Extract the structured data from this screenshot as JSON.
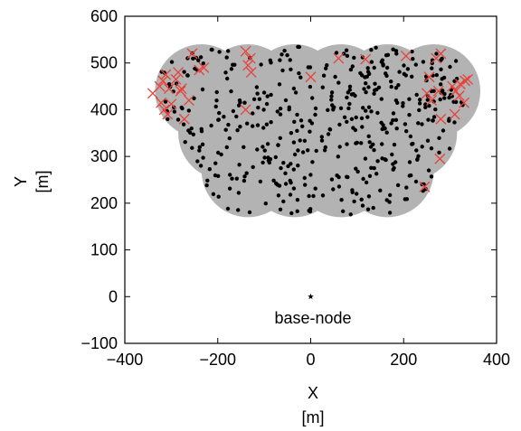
{
  "chart_data": {
    "type": "scatter",
    "xlim": [
      -400,
      400
    ],
    "ylim": [
      -100,
      600
    ],
    "xticks": [
      -400,
      -200,
      0,
      200,
      400
    ],
    "yticks": [
      -100,
      0,
      100,
      200,
      300,
      400,
      500,
      600
    ],
    "xtick_labels": [
      "−400",
      "−200",
      "0",
      "200",
      "400"
    ],
    "ytick_labels": [
      "−100",
      "0",
      "100",
      "200",
      "300",
      "400",
      "500",
      "600"
    ],
    "xlabel": "X",
    "xlabel_unit": "[m]",
    "ylabel": "Y",
    "ylabel_unit": "[m]",
    "grid": false,
    "coverage_circle_radius": 100,
    "coverage_circles": [
      [
        -235,
        440
      ],
      [
        -135,
        440
      ],
      [
        -35,
        440
      ],
      [
        65,
        440
      ],
      [
        165,
        440
      ],
      [
        265,
        440
      ],
      [
        -185,
        350
      ],
      [
        -85,
        350
      ],
      [
        15,
        350
      ],
      [
        115,
        350
      ],
      [
        215,
        350
      ],
      [
        -135,
        270
      ],
      [
        -35,
        270
      ],
      [
        65,
        270
      ],
      [
        165,
        270
      ]
    ],
    "base_node": {
      "x": 0,
      "y": 0,
      "label": "base-node"
    },
    "marker_colors": {
      "coverage": "#b3b3b3",
      "sensor": "#000000",
      "cross": "#e8413a"
    },
    "cross_markers": [
      [
        -340,
        435
      ],
      [
        -325,
        450
      ],
      [
        -318,
        462
      ],
      [
        -312,
        475
      ],
      [
        -322,
        415
      ],
      [
        -315,
        400
      ],
      [
        -308,
        390
      ],
      [
        -300,
        412
      ],
      [
        -305,
        445
      ],
      [
        -290,
        465
      ],
      [
        -285,
        480
      ],
      [
        -280,
        440
      ],
      [
        -278,
        445
      ],
      [
        -272,
        380
      ],
      [
        -262,
        420
      ],
      [
        -255,
        520
      ],
      [
        -240,
        485
      ],
      [
        -230,
        490
      ],
      [
        -140,
        525
      ],
      [
        -135,
        495
      ],
      [
        -130,
        510
      ],
      [
        -128,
        480
      ],
      [
        -140,
        400
      ],
      [
        0,
        470
      ],
      [
        60,
        510
      ],
      [
        118,
        508
      ],
      [
        205,
        515
      ],
      [
        270,
        510
      ],
      [
        280,
        520
      ],
      [
        255,
        470
      ],
      [
        250,
        435
      ],
      [
        260,
        420
      ],
      [
        275,
        440
      ],
      [
        280,
        380
      ],
      [
        278,
        295
      ],
      [
        245,
        235
      ],
      [
        305,
        450
      ],
      [
        312,
        440
      ],
      [
        320,
        430
      ],
      [
        322,
        455
      ],
      [
        332,
        462
      ],
      [
        338,
        465
      ],
      [
        330,
        415
      ],
      [
        310,
        390
      ]
    ]
  }
}
